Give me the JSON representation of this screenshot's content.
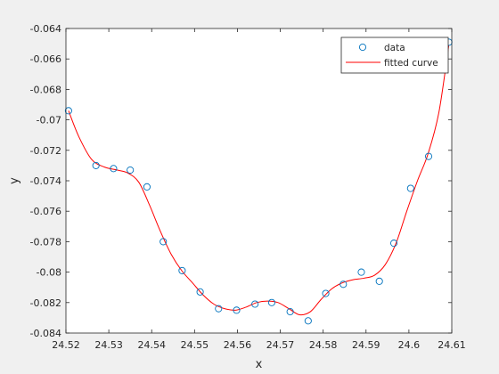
{
  "chart_data": {
    "type": "scatter",
    "title": "",
    "xlabel": "x",
    "ylabel": "y",
    "xlim": [
      24.52,
      24.61
    ],
    "ylim": [
      -0.084,
      -0.064
    ],
    "grid": false,
    "legend_position": "top-right",
    "x_ticks": [
      "24.52",
      "24.53",
      "24.54",
      "24.55",
      "24.56",
      "24.57",
      "24.58",
      "24.59",
      "24.6",
      "24.61"
    ],
    "y_ticks": [
      "-0.084",
      "-0.082",
      "-0.08",
      "-0.078",
      "-0.076",
      "-0.074",
      "-0.072",
      "-0.07",
      "-0.068",
      "-0.066",
      "-0.064"
    ],
    "series": [
      {
        "name": "data",
        "style": "markers",
        "marker": "circle",
        "color": "#0072bd",
        "x": [
          24.5206,
          24.527,
          24.5311,
          24.535,
          24.5389,
          24.5427,
          24.5471,
          24.5513,
          24.5556,
          24.5598,
          24.5641,
          24.568,
          24.5723,
          24.5765,
          24.5806,
          24.5847,
          24.5889,
          24.5931,
          24.5965,
          24.6004,
          24.6046,
          24.6093
        ],
        "y": [
          -0.0694,
          -0.073,
          -0.0732,
          -0.0733,
          -0.0744,
          -0.078,
          -0.0799,
          -0.0813,
          -0.0824,
          -0.0825,
          -0.0821,
          -0.082,
          -0.0826,
          -0.0832,
          -0.0814,
          -0.0808,
          -0.08,
          -0.0806,
          -0.0781,
          -0.0745,
          -0.0724,
          -0.0649
        ]
      },
      {
        "name": "fitted curve",
        "style": "line",
        "color": "#ff0000",
        "x": [
          24.5206,
          24.523,
          24.526,
          24.529,
          24.532,
          24.5345,
          24.537,
          24.5395,
          24.542,
          24.5445,
          24.547,
          24.5495,
          24.552,
          24.5545,
          24.557,
          24.5595,
          24.562,
          24.5645,
          24.567,
          24.5695,
          24.572,
          24.5745,
          24.577,
          24.5795,
          24.582,
          24.5845,
          24.587,
          24.5895,
          24.592,
          24.5945,
          24.597,
          24.5995,
          24.602,
          24.6045,
          24.607,
          24.6093
        ],
        "y": [
          -0.0694,
          -0.0711,
          -0.0726,
          -0.0731,
          -0.0733,
          -0.0735,
          -0.0741,
          -0.0756,
          -0.0773,
          -0.0788,
          -0.0799,
          -0.0807,
          -0.0815,
          -0.0821,
          -0.0824,
          -0.0825,
          -0.0823,
          -0.082,
          -0.0819,
          -0.082,
          -0.0824,
          -0.0828,
          -0.0826,
          -0.0818,
          -0.0811,
          -0.0807,
          -0.0805,
          -0.0804,
          -0.0802,
          -0.0795,
          -0.0781,
          -0.076,
          -0.074,
          -0.0722,
          -0.0695,
          -0.0651
        ]
      }
    ]
  }
}
